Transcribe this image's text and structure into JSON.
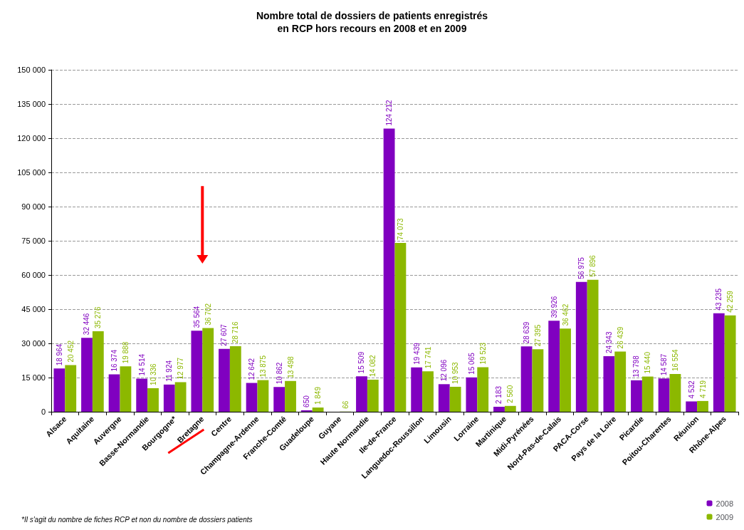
{
  "chart_data": {
    "type": "bar",
    "title": "Nombre total de dossiers de patients enregistrés\nen RCP hors recours en 2008 et en 2009",
    "categories": [
      "Alsace",
      "Aquitaine",
      "Auvergne",
      "Basse-Normandie",
      "Bourgogne*",
      "Bretagne",
      "Centre",
      "Champagne-Ardenne",
      "Franche-Comté",
      "Guadeloupe",
      "Guyane",
      "Haute Normandie",
      "Ile-de-France",
      "Languedoc-Roussillon",
      "Limousin",
      "Lorraine",
      "Martinique",
      "Midi-Pyrénées",
      "Nord-Pas-de-Calais",
      "PACA-Corse",
      "Pays de la Loire",
      "Picardie",
      "Poitou-Charentes",
      "Réunion",
      "Rhône-Alpes"
    ],
    "series": [
      {
        "name": "2008",
        "color": "#8000c0",
        "values": [
          18964,
          32446,
          16374,
          14514,
          11924,
          35564,
          27607,
          12642,
          10862,
          650,
          null,
          15509,
          124212,
          19439,
          12096,
          15065,
          2183,
          28639,
          39926,
          56975,
          24343,
          13798,
          14587,
          4532,
          43235
        ]
      },
      {
        "name": "2009",
        "color": "#8cb800",
        "values": [
          20452,
          35276,
          19888,
          10336,
          12977,
          36702,
          28716,
          13875,
          13498,
          1849,
          66,
          14082,
          74073,
          17741,
          10953,
          19523,
          2560,
          27395,
          36462,
          57896,
          26439,
          15440,
          16554,
          4719,
          42259
        ]
      }
    ],
    "ylim": [
      0,
      150000
    ],
    "yticks": [
      {
        "value": 0,
        "label": "0"
      },
      {
        "value": 15000,
        "label": "15 000"
      },
      {
        "value": 30000,
        "label": "30 000"
      },
      {
        "value": 45000,
        "label": "45 000"
      },
      {
        "value": 60000,
        "label": "60 000"
      },
      {
        "value": 75000,
        "label": "75 000"
      },
      {
        "value": 90000,
        "label": "90 000"
      },
      {
        "value": 105000,
        "label": "105 000"
      },
      {
        "value": 120000,
        "label": "120 000"
      },
      {
        "value": 135000,
        "label": "135 000"
      },
      {
        "value": 150000,
        "label": "150 000"
      }
    ],
    "grid": "y",
    "legend": "bottom right",
    "data_labels": true,
    "annotations": [
      "*Il s'agit du nombre de fiches RCP et non du nombre de dossiers patients"
    ]
  }
}
